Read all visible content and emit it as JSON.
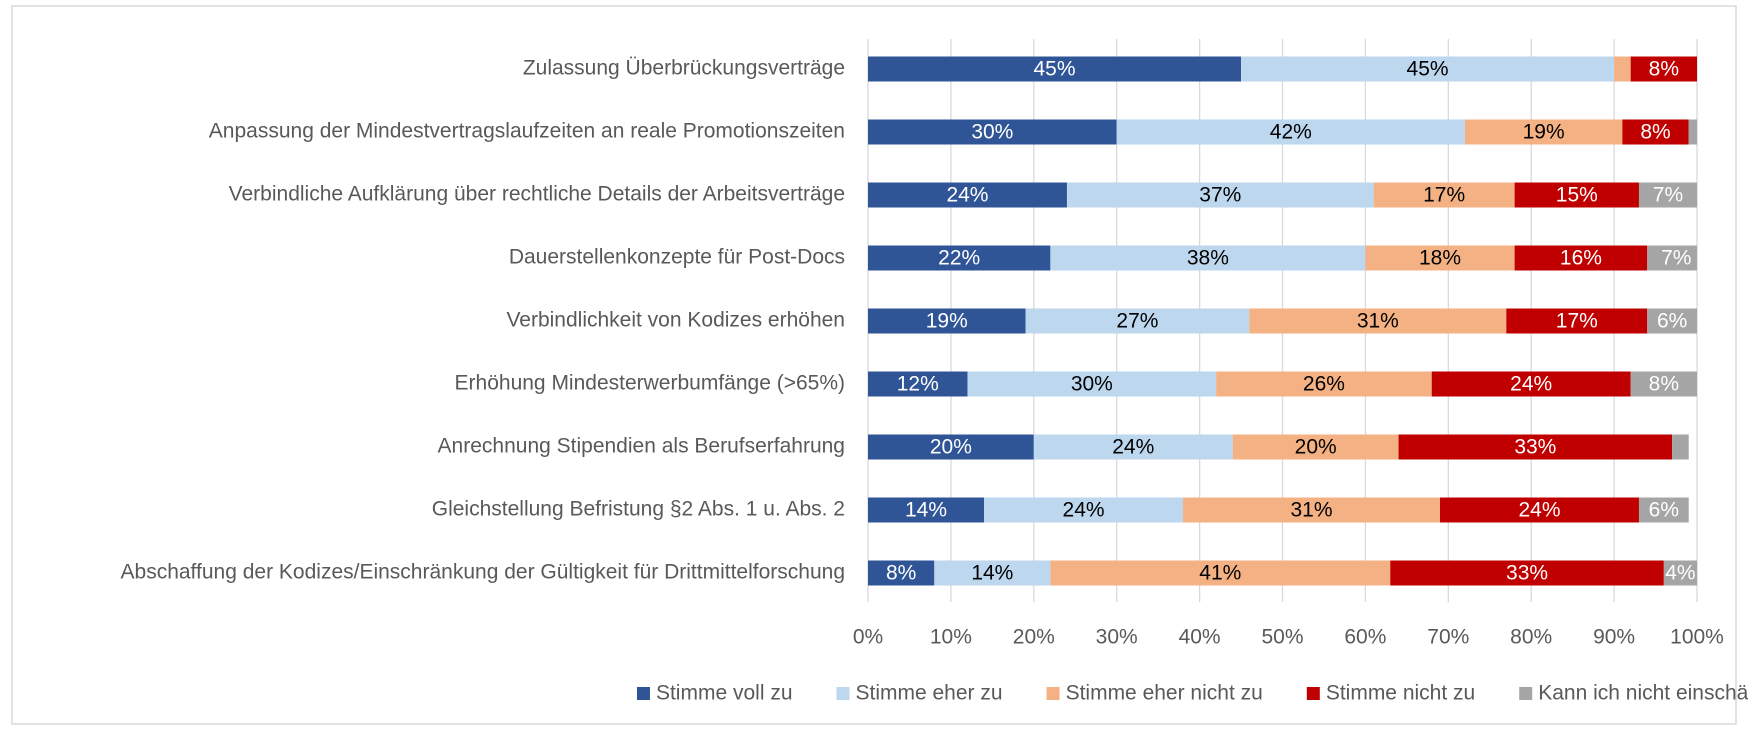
{
  "chart_data": {
    "type": "stacked_bar_horizontal",
    "categories": [
      "Zulassung Überbrückungsverträge",
      "Anpassung der Mindestvertragslaufzeiten an reale Promotionszeiten",
      "Verbindliche Aufklärung über rechtliche Details der Arbeitsverträge",
      "Dauerstellenkonzepte für Post-Docs",
      "Verbindlichkeit von Kodizes erhöhen",
      "Erhöhung Mindesterwerbumfänge (>65%)",
      "Anrechnung Stipendien als Berufserfahrung",
      "Gleichstellung Befristung §2 Abs. 1 u. Abs. 2",
      "Abschaffung der Kodizes/Einschränkung der Gültigkeit für Drittmittelforschung"
    ],
    "series": [
      {
        "name": "Stimme voll zu",
        "color": "#2f5597",
        "values": [
          45,
          30,
          24,
          22,
          19,
          12,
          20,
          14,
          8
        ],
        "value_labels": [
          "45%",
          "30%",
          "24%",
          "22%",
          "19%",
          "12%",
          "20%",
          "14%",
          "8%"
        ]
      },
      {
        "name": "Stimme eher zu",
        "color": "#bdd7ee",
        "values": [
          45,
          42,
          37,
          38,
          27,
          30,
          24,
          24,
          14
        ],
        "value_labels": [
          "45%",
          "42%",
          "37%",
          "38%",
          "27%",
          "30%",
          "24%",
          "24%",
          "14%"
        ]
      },
      {
        "name": "Stimme eher nicht zu",
        "color": "#f4b183",
        "values": [
          2,
          19,
          17,
          18,
          31,
          26,
          20,
          31,
          41
        ],
        "value_labels": [
          null,
          "19%",
          "17%",
          "18%",
          "31%",
          "26%",
          "20%",
          "31%",
          "41%"
        ]
      },
      {
        "name": "Stimme nicht zu",
        "color": "#c00000",
        "values": [
          8,
          8,
          15,
          16,
          17,
          24,
          33,
          24,
          33
        ],
        "value_labels": [
          "8%",
          "8%",
          "15%",
          "16%",
          "17%",
          "24%",
          "33%",
          "24%",
          "33%"
        ]
      },
      {
        "name": "Kann ich nicht einschätzen",
        "color": "#a5a5a5",
        "values": [
          0,
          1,
          7,
          7,
          6,
          8,
          2,
          6,
          4
        ],
        "value_labels": [
          null,
          null,
          "7%",
          "7%",
          "6%",
          "8%",
          null,
          "6%",
          "4%"
        ]
      }
    ],
    "xlim": [
      0,
      100
    ],
    "xticks": [
      {
        "value": 0,
        "label": "0%"
      },
      {
        "value": 10,
        "label": "10%"
      },
      {
        "value": 20,
        "label": "20%"
      },
      {
        "value": 30,
        "label": "30%"
      },
      {
        "value": 40,
        "label": "40%"
      },
      {
        "value": 50,
        "label": "50%"
      },
      {
        "value": 60,
        "label": "60%"
      },
      {
        "value": 70,
        "label": "70%"
      },
      {
        "value": 80,
        "label": "80%"
      },
      {
        "value": 90,
        "label": "90%"
      },
      {
        "value": 100,
        "label": "100%"
      }
    ],
    "grid": true,
    "legend": "bottom"
  }
}
